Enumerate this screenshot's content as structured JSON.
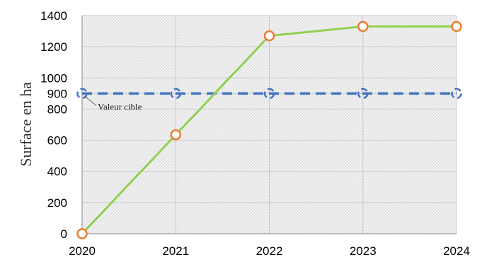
{
  "chart_data": {
    "type": "line",
    "title": "",
    "xlabel": "",
    "ylabel": "Surface en ha",
    "x": [
      "2020",
      "2021",
      "2022",
      "2023",
      "2024"
    ],
    "ylim": [
      0,
      1400
    ],
    "yticks": [
      "0",
      "200",
      "400",
      "600",
      "800",
      "900",
      "1000",
      "1200",
      "1400"
    ],
    "series": [
      {
        "name": "",
        "values": [
          0,
          635,
          1270,
          1330,
          1330
        ],
        "color": "#92d050",
        "marker_color": "#ed7d31"
      },
      {
        "name": "",
        "values": [
          900,
          900,
          900,
          900,
          900
        ],
        "color": "#4472c4",
        "style": "dashed"
      }
    ],
    "annotations": [
      {
        "text": "Valeur cible",
        "x": "2020",
        "y": 900
      }
    ],
    "grid": true,
    "background": "hatched"
  }
}
